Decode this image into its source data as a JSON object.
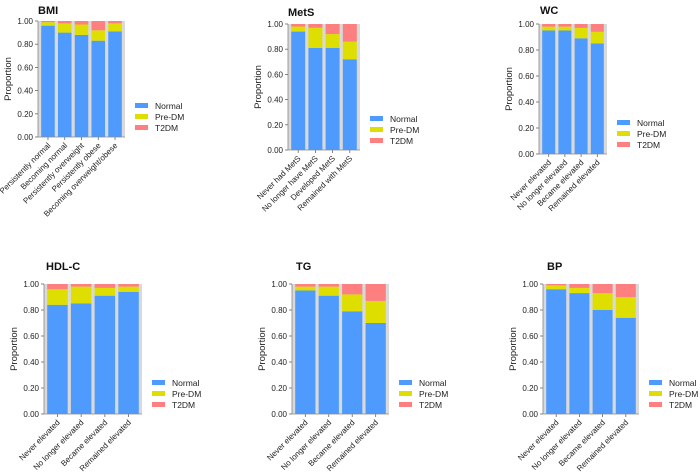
{
  "chart_data": [
    {
      "type": "bar",
      "stacked": true,
      "title": "BMI",
      "xlabel": "",
      "ylabel": "Proportion",
      "ylim": [
        0,
        1
      ],
      "yticks": [
        "0.00",
        "0.20",
        "0.40",
        "0.60",
        "0.80",
        "1.00"
      ],
      "categories": [
        "Persistently normal",
        "Becoming normal",
        "Persistently overweight",
        "Persistently obese",
        "Becoming overweight/obese"
      ],
      "series": [
        {
          "name": "Normal",
          "color": "#4f9bfd",
          "values": [
            0.96,
            0.9,
            0.88,
            0.83,
            0.91
          ]
        },
        {
          "name": "Pre-DM",
          "color": "#dede00",
          "values": [
            0.03,
            0.08,
            0.09,
            0.09,
            0.07
          ]
        },
        {
          "name": "T2DM",
          "color": "#fd7f7f",
          "values": [
            0.01,
            0.02,
            0.03,
            0.08,
            0.02
          ]
        }
      ],
      "legend": "right"
    },
    {
      "type": "bar",
      "stacked": true,
      "title": "MetS",
      "xlabel": "",
      "ylabel": "Proportion",
      "ylim": [
        0,
        1
      ],
      "yticks": [
        "0.00",
        "0.20",
        "0.40",
        "0.60",
        "0.80",
        "1.00"
      ],
      "categories": [
        "Never had MetS",
        "No longer have MetS",
        "Developed MetS",
        "Remained with MetS"
      ],
      "series": [
        {
          "name": "Normal",
          "color": "#4f9bfd",
          "values": [
            0.94,
            0.81,
            0.81,
            0.72
          ]
        },
        {
          "name": "Pre-DM",
          "color": "#dede00",
          "values": [
            0.04,
            0.16,
            0.11,
            0.14
          ]
        },
        {
          "name": "T2DM",
          "color": "#fd7f7f",
          "values": [
            0.02,
            0.03,
            0.08,
            0.14
          ]
        }
      ],
      "legend": "right"
    },
    {
      "type": "bar",
      "stacked": true,
      "title": "WC",
      "xlabel": "",
      "ylabel": "Proportion",
      "ylim": [
        0,
        1
      ],
      "yticks": [
        "0.00",
        "0.20",
        "0.40",
        "0.60",
        "0.80",
        "1.00"
      ],
      "categories": [
        "Never elevated",
        "No longer elevated",
        "Became elevated",
        "Remained elevated"
      ],
      "series": [
        {
          "name": "Normal",
          "color": "#4f9bfd",
          "values": [
            0.95,
            0.95,
            0.89,
            0.85
          ]
        },
        {
          "name": "Pre-DM",
          "color": "#dede00",
          "values": [
            0.03,
            0.03,
            0.08,
            0.09
          ]
        },
        {
          "name": "T2DM",
          "color": "#fd7f7f",
          "values": [
            0.02,
            0.02,
            0.03,
            0.06
          ]
        }
      ],
      "legend": "right"
    },
    {
      "type": "bar",
      "stacked": true,
      "title": "HDL-C",
      "xlabel": "",
      "ylabel": "Proportion",
      "ylim": [
        0,
        1
      ],
      "yticks": [
        "0.00",
        "0.20",
        "0.40",
        "0.60",
        "0.80",
        "1.00"
      ],
      "categories": [
        "Never elevated",
        "No longer elevated",
        "Became elevated",
        "Remained elevated"
      ],
      "series": [
        {
          "name": "Normal",
          "color": "#4f9bfd",
          "values": [
            0.84,
            0.85,
            0.91,
            0.94
          ]
        },
        {
          "name": "Pre-DM",
          "color": "#dede00",
          "values": [
            0.12,
            0.13,
            0.06,
            0.04
          ]
        },
        {
          "name": "T2DM",
          "color": "#fd7f7f",
          "values": [
            0.04,
            0.02,
            0.03,
            0.02
          ]
        }
      ],
      "legend": "right"
    },
    {
      "type": "bar",
      "stacked": true,
      "title": "TG",
      "xlabel": "",
      "ylabel": "Proportion",
      "ylim": [
        0,
        1
      ],
      "yticks": [
        "0.00",
        "0.20",
        "0.40",
        "0.60",
        "0.80",
        "1.00"
      ],
      "categories": [
        "Never elevated",
        "No longer elevated",
        "Became elevated",
        "Remained elevated"
      ],
      "series": [
        {
          "name": "Normal",
          "color": "#4f9bfd",
          "values": [
            0.95,
            0.91,
            0.79,
            0.7
          ]
        },
        {
          "name": "Pre-DM",
          "color": "#dede00",
          "values": [
            0.03,
            0.07,
            0.13,
            0.17
          ]
        },
        {
          "name": "T2DM",
          "color": "#fd7f7f",
          "values": [
            0.02,
            0.02,
            0.08,
            0.13
          ]
        }
      ],
      "legend": "right"
    },
    {
      "type": "bar",
      "stacked": true,
      "title": "BP",
      "xlabel": "",
      "ylabel": "Proportion",
      "ylim": [
        0,
        1
      ],
      "yticks": [
        "0.00",
        "0.20",
        "0.40",
        "0.60",
        "0.80",
        "1.00"
      ],
      "categories": [
        "Never elevated",
        "No longer elevated",
        "Became elevated",
        "Remained elevated"
      ],
      "series": [
        {
          "name": "Normal",
          "color": "#4f9bfd",
          "values": [
            0.96,
            0.93,
            0.8,
            0.74
          ]
        },
        {
          "name": "Pre-DM",
          "color": "#dede00",
          "values": [
            0.03,
            0.04,
            0.13,
            0.16
          ]
        },
        {
          "name": "T2DM",
          "color": "#fd7f7f",
          "values": [
            0.01,
            0.03,
            0.07,
            0.1
          ]
        }
      ],
      "legend": "right"
    }
  ]
}
